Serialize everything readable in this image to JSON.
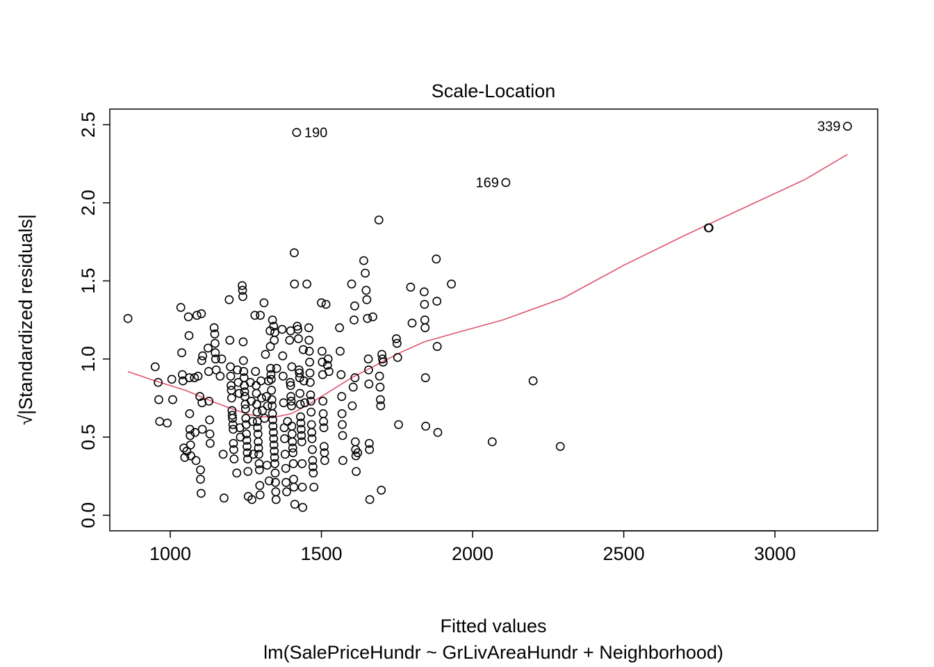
{
  "chart_data": {
    "type": "scatter",
    "title": "Scale-Location",
    "xlabel": "Fitted values",
    "subtitle": "lm(SalePriceHundr ~ GrLivAreaHundr + Neighborhood)",
    "ylabel": "√|Standardized residuals|",
    "xlim": [
      800,
      3340
    ],
    "ylim": [
      -0.1,
      2.6
    ],
    "x_ticks": [
      1000,
      1500,
      2000,
      2500,
      3000
    ],
    "y_ticks": [
      0.0,
      0.5,
      1.0,
      1.5,
      2.0,
      2.5
    ],
    "x_tick_labels": [
      "1000",
      "1500",
      "2000",
      "2500",
      "3000"
    ],
    "y_tick_labels": [
      "0.0",
      "0.5",
      "1.0",
      "1.5",
      "2.0",
      "2.5"
    ],
    "smoother_color": "#DF536B",
    "points": [
      [
        860,
        1.26
      ],
      [
        950,
        0.95
      ],
      [
        960,
        0.85
      ],
      [
        962,
        0.74
      ],
      [
        965,
        0.6
      ],
      [
        990,
        0.59
      ],
      [
        1005,
        0.87
      ],
      [
        1008,
        0.74
      ],
      [
        1035,
        1.33
      ],
      [
        1038,
        1.04
      ],
      [
        1040,
        0.9
      ],
      [
        1042,
        0.86
      ],
      [
        1045,
        0.43
      ],
      [
        1048,
        0.37
      ],
      [
        1055,
        0.41
      ],
      [
        1060,
        1.27
      ],
      [
        1062,
        1.15
      ],
      [
        1063,
        0.88
      ],
      [
        1064,
        0.65
      ],
      [
        1065,
        0.55
      ],
      [
        1066,
        0.51
      ],
      [
        1067,
        0.45
      ],
      [
        1068,
        0.38
      ],
      [
        1080,
        0.88
      ],
      [
        1082,
        0.53
      ],
      [
        1085,
        0.35
      ],
      [
        1088,
        1.28
      ],
      [
        1092,
        0.89
      ],
      [
        1098,
        0.76
      ],
      [
        1100,
        0.29
      ],
      [
        1100,
        0.23
      ],
      [
        1102,
        0.14
      ],
      [
        1103,
        1.29
      ],
      [
        1104,
        0.99
      ],
      [
        1105,
        0.72
      ],
      [
        1106,
        0.55
      ],
      [
        1107,
        1.02
      ],
      [
        1125,
        1.07
      ],
      [
        1127,
        0.92
      ],
      [
        1128,
        0.73
      ],
      [
        1130,
        0.61
      ],
      [
        1131,
        0.52
      ],
      [
        1132,
        0.46
      ],
      [
        1145,
        1.2
      ],
      [
        1147,
        1.16
      ],
      [
        1148,
        1.1
      ],
      [
        1149,
        1.04
      ],
      [
        1150,
        1.0
      ],
      [
        1152,
        0.93
      ],
      [
        1165,
        0.89
      ],
      [
        1170,
        1.0
      ],
      [
        1175,
        0.39
      ],
      [
        1178,
        0.11
      ],
      [
        1195,
        1.38
      ],
      [
        1197,
        1.12
      ],
      [
        1199,
        0.95
      ],
      [
        1200,
        0.89
      ],
      [
        1201,
        0.83
      ],
      [
        1202,
        0.8
      ],
      [
        1203,
        0.75
      ],
      [
        1204,
        0.67
      ],
      [
        1205,
        0.64
      ],
      [
        1206,
        0.62
      ],
      [
        1207,
        0.58
      ],
      [
        1208,
        0.55
      ],
      [
        1209,
        0.46
      ],
      [
        1210,
        0.42
      ],
      [
        1211,
        0.36
      ],
      [
        1220,
        0.27
      ],
      [
        1222,
        0.93
      ],
      [
        1225,
        0.85
      ],
      [
        1228,
        0.78
      ],
      [
        1230,
        0.56
      ],
      [
        1232,
        0.5
      ],
      [
        1238,
        1.47
      ],
      [
        1239,
        1.44
      ],
      [
        1240,
        1.4
      ],
      [
        1241,
        1.11
      ],
      [
        1242,
        0.99
      ],
      [
        1243,
        0.92
      ],
      [
        1244,
        0.88
      ],
      [
        1245,
        0.83
      ],
      [
        1246,
        0.79
      ],
      [
        1247,
        0.76
      ],
      [
        1248,
        0.71
      ],
      [
        1249,
        0.68
      ],
      [
        1250,
        0.62
      ],
      [
        1251,
        0.58
      ],
      [
        1252,
        0.52
      ],
      [
        1253,
        0.48
      ],
      [
        1254,
        0.44
      ],
      [
        1255,
        0.4
      ],
      [
        1256,
        0.36
      ],
      [
        1257,
        0.28
      ],
      [
        1258,
        0.12
      ],
      [
        1265,
        0.85
      ],
      [
        1268,
        0.73
      ],
      [
        1270,
        0.1
      ],
      [
        1272,
        0.6
      ],
      [
        1275,
        0.39
      ],
      [
        1280,
        1.28
      ],
      [
        1282,
        0.92
      ],
      [
        1284,
        0.83
      ],
      [
        1285,
        0.78
      ],
      [
        1286,
        0.71
      ],
      [
        1287,
        0.66
      ],
      [
        1288,
        0.6
      ],
      [
        1289,
        0.56
      ],
      [
        1290,
        0.52
      ],
      [
        1291,
        0.47
      ],
      [
        1292,
        0.43
      ],
      [
        1293,
        0.39
      ],
      [
        1294,
        0.33
      ],
      [
        1295,
        0.29
      ],
      [
        1296,
        0.19
      ],
      [
        1297,
        0.13
      ],
      [
        1298,
        1.28
      ],
      [
        1300,
        0.86
      ],
      [
        1302,
        0.75
      ],
      [
        1305,
        0.67
      ],
      [
        1310,
        1.36
      ],
      [
        1312,
        0.62
      ],
      [
        1315,
        1.03
      ],
      [
        1318,
        0.76
      ],
      [
        1320,
        0.32
      ],
      [
        1322,
        0.7
      ],
      [
        1325,
        0.86
      ],
      [
        1327,
        0.22
      ],
      [
        1330,
        1.18
      ],
      [
        1331,
        1.08
      ],
      [
        1332,
        0.94
      ],
      [
        1333,
        0.9
      ],
      [
        1334,
        0.87
      ],
      [
        1335,
        0.8
      ],
      [
        1336,
        0.74
      ],
      [
        1337,
        0.7
      ],
      [
        1338,
        0.65
      ],
      [
        1339,
        0.61
      ],
      [
        1340,
        0.57
      ],
      [
        1341,
        0.53
      ],
      [
        1342,
        0.49
      ],
      [
        1343,
        0.45
      ],
      [
        1344,
        0.41
      ],
      [
        1345,
        0.37
      ],
      [
        1346,
        0.33
      ],
      [
        1347,
        0.27
      ],
      [
        1348,
        0.21
      ],
      [
        1349,
        0.15
      ],
      [
        1350,
        0.1
      ],
      [
        1338,
        1.25
      ],
      [
        1342,
        1.21
      ],
      [
        1344,
        1.12
      ],
      [
        1346,
        1.17
      ],
      [
        1352,
        0.94
      ],
      [
        1370,
        1.19
      ],
      [
        1372,
        1.02
      ],
      [
        1373,
        0.89
      ],
      [
        1375,
        0.72
      ],
      [
        1377,
        0.56
      ],
      [
        1378,
        0.49
      ],
      [
        1380,
        0.39
      ],
      [
        1382,
        0.3
      ],
      [
        1383,
        0.21
      ],
      [
        1385,
        0.15
      ],
      [
        1388,
        0.6
      ],
      [
        1395,
        1.12
      ],
      [
        1397,
        0.85
      ],
      [
        1398,
        0.83
      ],
      [
        1399,
        0.76
      ],
      [
        1400,
        0.73
      ],
      [
        1401,
        0.7
      ],
      [
        1402,
        0.57
      ],
      [
        1403,
        0.52
      ],
      [
        1404,
        0.47
      ],
      [
        1405,
        0.43
      ],
      [
        1406,
        0.4
      ],
      [
        1407,
        0.33
      ],
      [
        1408,
        0.23
      ],
      [
        1409,
        0.18
      ],
      [
        1410,
        1.68
      ],
      [
        1411,
        1.48
      ],
      [
        1412,
        0.07
      ],
      [
        1398,
        1.18
      ],
      [
        1402,
        0.95
      ],
      [
        1420,
        1.21
      ],
      [
        1422,
        1.19
      ],
      [
        1424,
        1.13
      ],
      [
        1426,
        0.93
      ],
      [
        1427,
        0.91
      ],
      [
        1428,
        0.88
      ],
      [
        1429,
        0.78
      ],
      [
        1430,
        0.71
      ],
      [
        1431,
        0.63
      ],
      [
        1432,
        0.59
      ],
      [
        1433,
        0.55
      ],
      [
        1434,
        0.51
      ],
      [
        1435,
        0.47
      ],
      [
        1436,
        0.33
      ],
      [
        1437,
        0.18
      ],
      [
        1438,
        0.05
      ],
      [
        1440,
        1.06
      ],
      [
        1442,
        0.86
      ],
      [
        1445,
        0.72
      ],
      [
        1452,
        1.48
      ],
      [
        1458,
        1.2
      ],
      [
        1459,
        1.12
      ],
      [
        1460,
        1.05
      ],
      [
        1461,
        0.98
      ],
      [
        1462,
        0.91
      ],
      [
        1463,
        0.85
      ],
      [
        1464,
        0.77
      ],
      [
        1465,
        0.73
      ],
      [
        1466,
        0.66
      ],
      [
        1467,
        0.58
      ],
      [
        1468,
        0.53
      ],
      [
        1469,
        0.49
      ],
      [
        1470,
        0.42
      ],
      [
        1471,
        0.35
      ],
      [
        1472,
        0.31
      ],
      [
        1473,
        0.27
      ],
      [
        1475,
        0.18
      ],
      [
        1500,
        1.36
      ],
      [
        1502,
        1.05
      ],
      [
        1503,
        0.98
      ],
      [
        1504,
        0.9
      ],
      [
        1505,
        0.73
      ],
      [
        1506,
        0.65
      ],
      [
        1507,
        0.6
      ],
      [
        1508,
        0.56
      ],
      [
        1509,
        0.44
      ],
      [
        1510,
        0.4
      ],
      [
        1511,
        0.35
      ],
      [
        1515,
        1.35
      ],
      [
        1520,
        0.96
      ],
      [
        1522,
        1.0
      ],
      [
        1525,
        0.92
      ],
      [
        1560,
        1.2
      ],
      [
        1562,
        1.05
      ],
      [
        1565,
        0.9
      ],
      [
        1567,
        0.76
      ],
      [
        1568,
        0.65
      ],
      [
        1569,
        0.58
      ],
      [
        1570,
        0.51
      ],
      [
        1571,
        0.35
      ],
      [
        1600,
        1.48
      ],
      [
        1602,
        0.7
      ],
      [
        1605,
        0.82
      ],
      [
        1608,
        1.25
      ],
      [
        1610,
        1.34
      ],
      [
        1611,
        0.88
      ],
      [
        1612,
        0.47
      ],
      [
        1613,
        0.42
      ],
      [
        1614,
        0.38
      ],
      [
        1615,
        0.28
      ],
      [
        1620,
        0.4
      ],
      [
        1640,
        1.63
      ],
      [
        1645,
        1.55
      ],
      [
        1648,
        1.44
      ],
      [
        1650,
        1.38
      ],
      [
        1652,
        1.26
      ],
      [
        1655,
        1.0
      ],
      [
        1656,
        0.93
      ],
      [
        1657,
        0.84
      ],
      [
        1658,
        0.46
      ],
      [
        1659,
        0.42
      ],
      [
        1660,
        0.1
      ],
      [
        1670,
        1.27
      ],
      [
        1690,
        1.89
      ],
      [
        1692,
        0.89
      ],
      [
        1694,
        0.82
      ],
      [
        1695,
        0.74
      ],
      [
        1696,
        0.7
      ],
      [
        1698,
        0.16
      ],
      [
        1700,
        1.03
      ],
      [
        1702,
        1.0
      ],
      [
        1704,
        0.98
      ],
      [
        1748,
        1.13
      ],
      [
        1750,
        1.1
      ],
      [
        1752,
        1.01
      ],
      [
        1755,
        0.58
      ],
      [
        1795,
        1.46
      ],
      [
        1800,
        1.23
      ],
      [
        1840,
        1.43
      ],
      [
        1841,
        1.35
      ],
      [
        1842,
        1.25
      ],
      [
        1843,
        1.2
      ],
      [
        1844,
        0.88
      ],
      [
        1845,
        0.57
      ],
      [
        1880,
        1.64
      ],
      [
        1882,
        1.37
      ],
      [
        1883,
        1.08
      ],
      [
        1885,
        0.53
      ],
      [
        1930,
        1.48
      ],
      [
        2065,
        0.47
      ],
      [
        2110,
        2.13
      ],
      [
        2200,
        0.86
      ],
      [
        2290,
        0.44
      ],
      [
        2780,
        1.84
      ],
      [
        2782,
        1.84
      ],
      [
        1418,
        2.45
      ],
      [
        3240,
        2.49
      ]
    ],
    "point_labels": [
      {
        "text": "190",
        "x": 1418,
        "y": 2.45,
        "side": "right"
      },
      {
        "text": "169",
        "x": 2110,
        "y": 2.13,
        "side": "left"
      },
      {
        "text": "339",
        "x": 3240,
        "y": 2.49,
        "side": "left"
      }
    ],
    "smoother": [
      [
        860,
        0.92
      ],
      [
        950,
        0.86
      ],
      [
        1050,
        0.8
      ],
      [
        1150,
        0.72
      ],
      [
        1250,
        0.65
      ],
      [
        1300,
        0.63
      ],
      [
        1350,
        0.63
      ],
      [
        1400,
        0.65
      ],
      [
        1450,
        0.7
      ],
      [
        1500,
        0.76
      ],
      [
        1550,
        0.82
      ],
      [
        1600,
        0.88
      ],
      [
        1650,
        0.93
      ],
      [
        1700,
        0.98
      ],
      [
        1760,
        1.04
      ],
      [
        1840,
        1.11
      ],
      [
        1950,
        1.17
      ],
      [
        2100,
        1.25
      ],
      [
        2300,
        1.39
      ],
      [
        2500,
        1.6
      ],
      [
        2700,
        1.79
      ],
      [
        2900,
        1.97
      ],
      [
        3100,
        2.15
      ],
      [
        3240,
        2.31
      ]
    ]
  }
}
